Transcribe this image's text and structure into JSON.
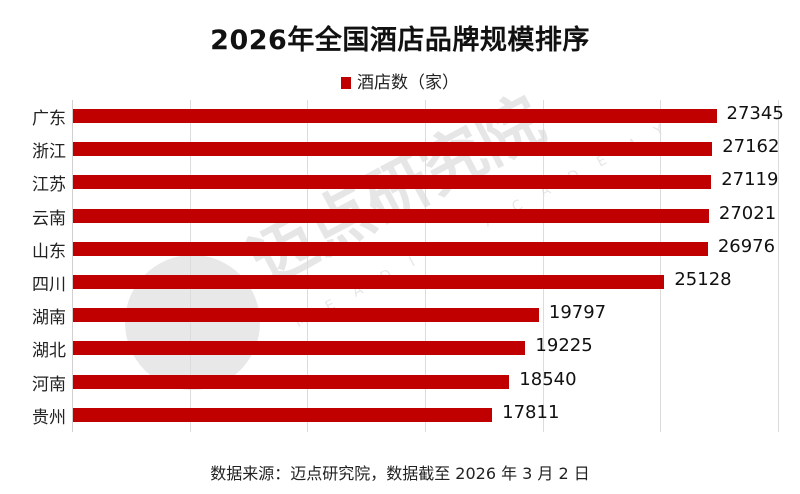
{
  "title": "2026年全国酒店品牌规模排序",
  "legend": {
    "label": "酒店数（家）",
    "color": "#c00000"
  },
  "source": "数据来源：迈点研究院，数据截至 2026 年 3 月 2 日",
  "watermark": {
    "text": "迈点研究院",
    "subtext": "MEADIN ACADEMY",
    "icon": "meadin-logo-icon"
  },
  "chart_data": {
    "type": "bar",
    "orientation": "horizontal",
    "title": "2026年全国酒店品牌规模排序",
    "xlabel": "",
    "ylabel": "",
    "xlim": [
      0,
      30000
    ],
    "grid": true,
    "grid_step": 5000,
    "legend_position": "top",
    "categories": [
      "广东",
      "浙江",
      "江苏",
      "云南",
      "山东",
      "四川",
      "湖南",
      "湖北",
      "河南",
      "贵州"
    ],
    "series": [
      {
        "name": "酒店数（家）",
        "color": "#c00000",
        "values": [
          27345,
          27162,
          27119,
          27021,
          26976,
          25128,
          19797,
          19225,
          18540,
          17811
        ]
      }
    ],
    "data_labels": [
      "27345",
      "27162",
      "27119",
      "27021",
      "26976",
      "25128",
      "19797",
      "19225",
      "18540",
      "17811"
    ]
  }
}
